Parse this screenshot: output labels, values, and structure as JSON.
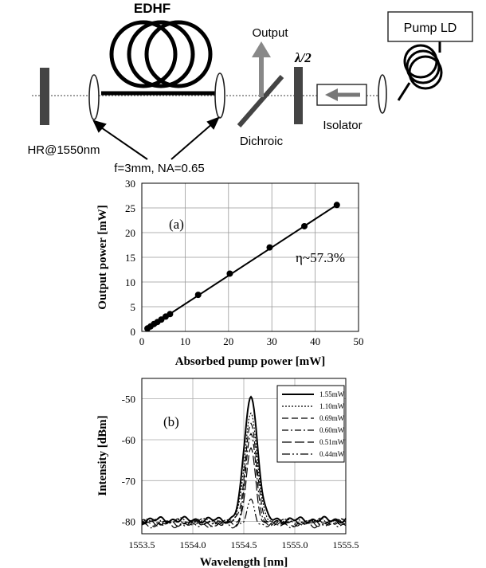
{
  "setup": {
    "labels": {
      "edhf": "EDHF",
      "output": "Output",
      "half_wave": "λ/2",
      "pump_ld": "Pump LD",
      "dichroic": "Dichroic",
      "isolator": "Isolator",
      "hr_mirror": "HR@1550nm",
      "lens_spec": "f=3mm, NA=0.65"
    }
  },
  "chart_data": [
    {
      "type": "scatter",
      "panel_label": "(a)",
      "xlabel": "Absorbed pump power [mW]",
      "ylabel": "Output power [mW]",
      "annotation": "η~57.3%",
      "xlim": [
        0,
        50
      ],
      "ylim": [
        0,
        30
      ],
      "xticks": [
        "0",
        "10",
        "20",
        "30",
        "40",
        "50"
      ],
      "yticks": [
        "0",
        "5",
        "10",
        "15",
        "20",
        "25",
        "30"
      ],
      "grid": true,
      "x": [
        1.3,
        2.0,
        2.8,
        3.6,
        4.5,
        5.5,
        6.5,
        13.0,
        20.3,
        29.5,
        37.5,
        45.0
      ],
      "y": [
        0.6,
        1.0,
        1.5,
        1.9,
        2.4,
        3.0,
        3.5,
        7.4,
        11.7,
        17.0,
        21.3,
        25.6
      ],
      "fit": {
        "x": [
          1.0,
          45.5
        ],
        "y": [
          0.4,
          25.9
        ]
      }
    },
    {
      "type": "line",
      "panel_label": "(b)",
      "xlabel": "Wavelength [nm]",
      "ylabel": "Intensity [dBm]",
      "xlim": [
        1553.5,
        1555.5
      ],
      "ylim": [
        -83,
        -45
      ],
      "xticks": [
        "1553.5",
        "1554.0",
        "1554.5",
        "1555.0",
        "1555.5"
      ],
      "yticks": [
        "-50",
        "-60",
        "-70",
        "-80"
      ],
      "legend_position": "top-right",
      "series": [
        {
          "name": "1.55mW",
          "peak": -49.5,
          "width": 0.065,
          "floor": -79.6
        },
        {
          "name": "1.10mW",
          "peak": -53.5,
          "width": 0.06,
          "floor": -79.9
        },
        {
          "name": "0.69mW",
          "peak": -56.0,
          "width": 0.055,
          "floor": -80.1
        },
        {
          "name": "0.60mW",
          "peak": -58.5,
          "width": 0.05,
          "floor": -80.3
        },
        {
          "name": "0.51mW",
          "peak": -62.0,
          "width": 0.045,
          "floor": -80.5
        },
        {
          "name": "0.44mW",
          "peak": -74.5,
          "width": 0.035,
          "floor": -80.8
        }
      ]
    }
  ]
}
